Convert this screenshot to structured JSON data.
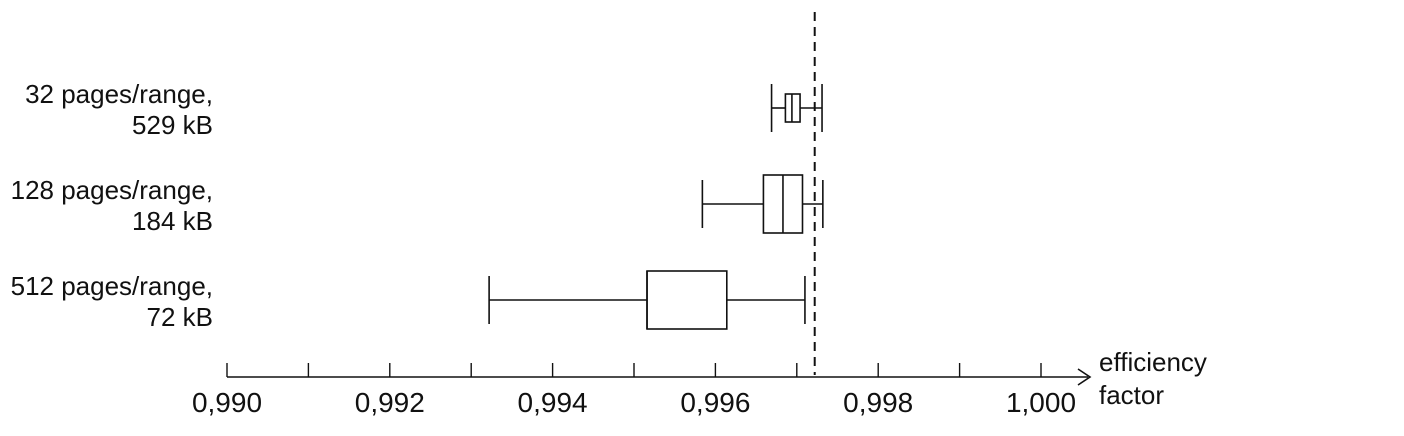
{
  "chart_data": {
    "type": "boxplot",
    "xlabel": "efficiency factor",
    "xlim": [
      0.99,
      1.001
    ],
    "x_ticks": [
      0.99,
      0.991,
      0.992,
      0.993,
      0.994,
      0.995,
      0.996,
      0.997,
      0.998,
      0.999,
      1.0
    ],
    "x_tick_labels": [
      "0,990",
      "",
      "0,992",
      "",
      "0,994",
      "",
      "0,996",
      "",
      "0,998",
      "",
      "1,000"
    ],
    "xlabel_lines": [
      "efficiency",
      "factor"
    ],
    "reference_line": 0.99722,
    "categories": [
      {
        "label_lines": [
          "32 pages/range,",
          "529 kB"
        ],
        "whisker_low": 0.99669,
        "q1": 0.99686,
        "median": 0.99694,
        "q3": 0.99704,
        "whisker_high": 0.99731
      },
      {
        "label_lines": [
          "128 pages/range,",
          "184 kB"
        ],
        "whisker_low": 0.99584,
        "q1": 0.99659,
        "median": 0.99683,
        "q3": 0.99707,
        "whisker_high": 0.99732
      },
      {
        "label_lines": [
          "512 pages/range,",
          "72 kB"
        ],
        "whisker_low": 0.99322,
        "q1": 0.99516,
        "median": 0.99516,
        "q3": 0.99614,
        "whisker_high": 0.9971
      }
    ],
    "grid": false,
    "legend": "none"
  }
}
